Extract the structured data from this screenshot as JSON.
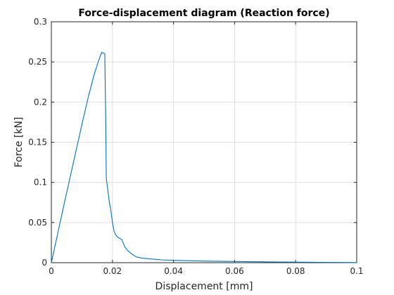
{
  "chart_data": {
    "type": "line",
    "title": "Force-displacement diagram (Reaction force)",
    "xlabel": "Displacement [mm]",
    "ylabel": "Force [kN]",
    "xlim": [
      0,
      0.1
    ],
    "ylim": [
      0,
      0.3
    ],
    "xticks": [
      0,
      0.02,
      0.04,
      0.06,
      0.08,
      0.1
    ],
    "xtick_labels": [
      "0",
      "0.02",
      "0.04",
      "0.06",
      "0.08",
      "0.1"
    ],
    "yticks": [
      0,
      0.05,
      0.1,
      0.15,
      0.2,
      0.25,
      0.3
    ],
    "ytick_labels": [
      "0",
      "0.05",
      "0.1",
      "0.15",
      "0.2",
      "0.25",
      "0.3"
    ],
    "grid": true,
    "series_color": "#0072bd",
    "series": [
      {
        "x": [
          0,
          0.002,
          0.004,
          0.006,
          0.008,
          0.01,
          0.012,
          0.014,
          0.0155,
          0.0165,
          0.0175,
          0.0178,
          0.018,
          0.0185,
          0.019,
          0.0195,
          0.02,
          0.0205,
          0.021,
          0.022,
          0.023,
          0.0235,
          0.024,
          0.025,
          0.026,
          0.027,
          0.028,
          0.03,
          0.033,
          0.036,
          0.04,
          0.05,
          0.06,
          0.07,
          0.08,
          0.09,
          0.1
        ],
        "y": [
          0,
          0.035,
          0.07,
          0.104,
          0.138,
          0.172,
          0.205,
          0.234,
          0.252,
          0.262,
          0.26,
          0.18,
          0.105,
          0.09,
          0.075,
          0.065,
          0.05,
          0.04,
          0.035,
          0.031,
          0.029,
          0.025,
          0.02,
          0.015,
          0.012,
          0.009,
          0.007,
          0.0055,
          0.0045,
          0.0035,
          0.003,
          0.002,
          0.0015,
          0.001,
          0.0007,
          0.0004,
          0.0002
        ]
      }
    ]
  }
}
